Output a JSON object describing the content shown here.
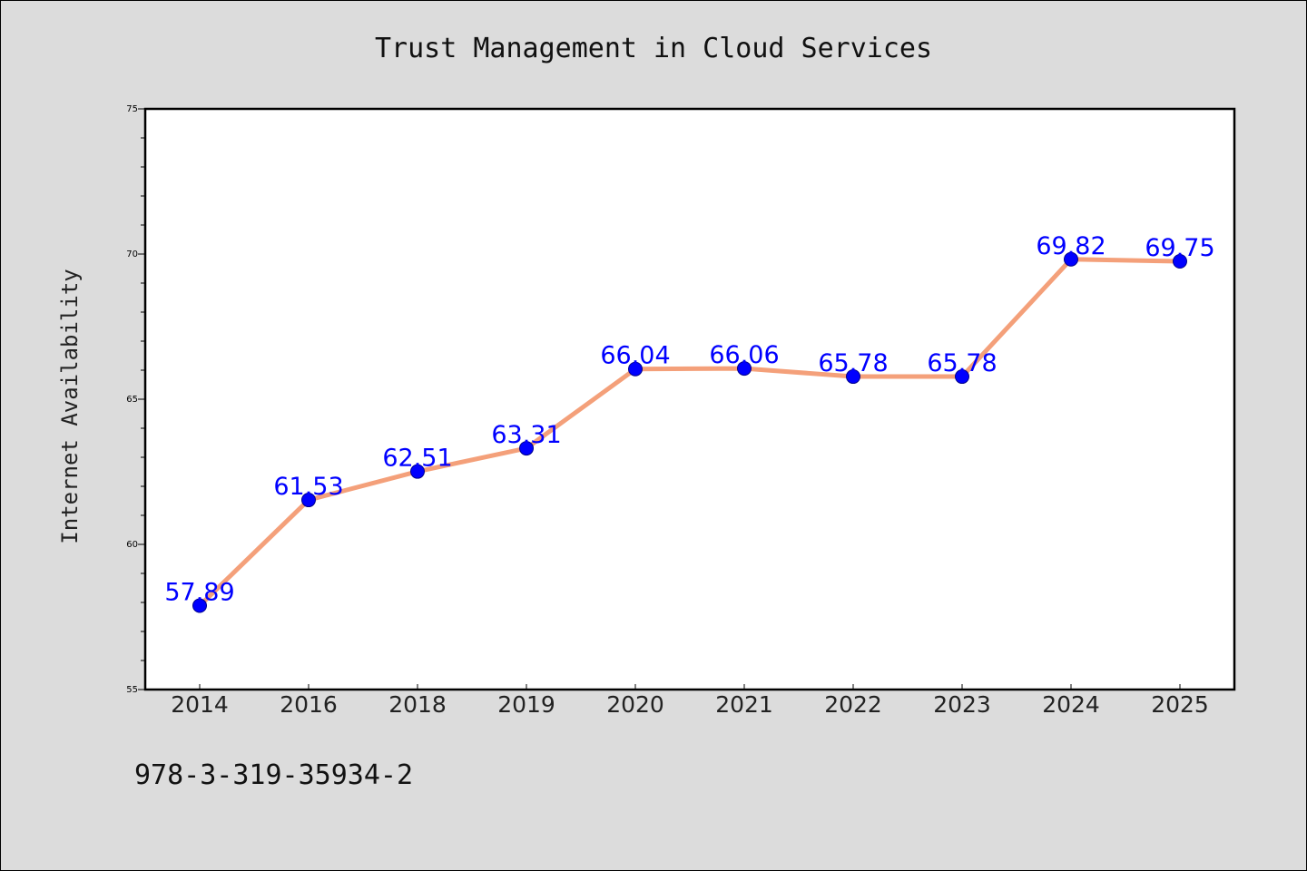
{
  "chart_data": {
    "type": "line",
    "title": "Trust Management in Cloud Services",
    "xlabel": "",
    "ylabel": "Internet Availability",
    "categories": [
      "2014",
      "2016",
      "2018",
      "2019",
      "2020",
      "2021",
      "2022",
      "2023",
      "2024",
      "2025"
    ],
    "series": [
      {
        "values": [
          57.89,
          61.53,
          62.51,
          63.31,
          66.04,
          66.06,
          65.78,
          65.78,
          69.82,
          69.75
        ],
        "data_labels": [
          "57.89",
          "61.53",
          "62.51",
          "63.31",
          "66.04",
          "66.06",
          "65.78",
          "65.78",
          "69.82",
          "69.75"
        ],
        "line_color": "#f4a07a",
        "marker_color": "#0000ff"
      }
    ],
    "ylim": [
      55,
      75
    ],
    "y_major_ticks": [
      55,
      60,
      65,
      70,
      75
    ],
    "y_minor_step": 1,
    "grid": false,
    "legend": "none",
    "colors": {
      "background": "#dcdcdc",
      "plot_background": "#ffffff",
      "label_color": "#0000ff"
    }
  },
  "footnote": "978-3-319-35934-2"
}
